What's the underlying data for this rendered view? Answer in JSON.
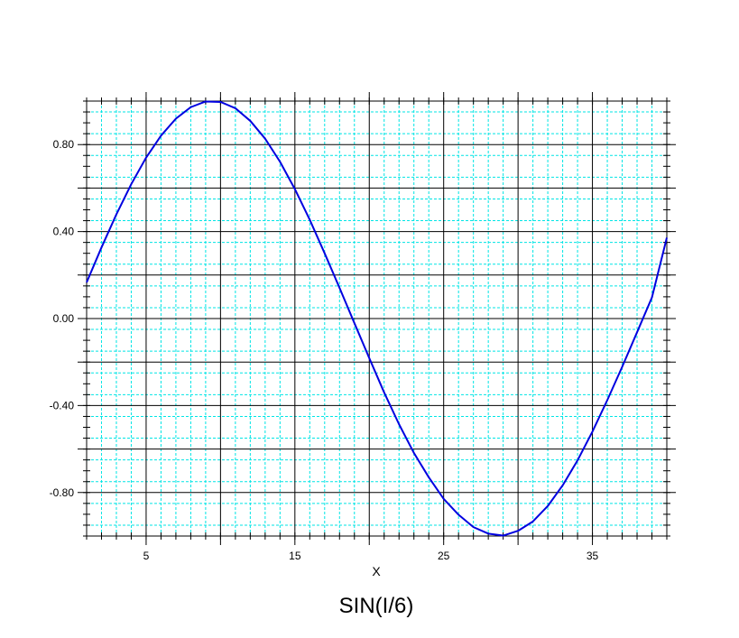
{
  "chart_data": {
    "type": "line",
    "title": "SIN(I/6)",
    "xlabel": "X",
    "ylabel": "",
    "xlim": [
      1,
      40
    ],
    "ylim": [
      -1,
      1
    ],
    "x_major_ticks": [
      5,
      15,
      25,
      35
    ],
    "x_major_tick_labels": [
      "5",
      "15",
      "25",
      "35"
    ],
    "y_major_ticks": [
      0.8,
      0.4,
      0.0,
      -0.4,
      -0.8
    ],
    "y_major_tick_labels": [
      "0.80",
      "0.40",
      "0.00",
      "-0.40",
      "-0.80"
    ],
    "grid": true,
    "series": [
      {
        "x": [
          1,
          2,
          3,
          4,
          5,
          6,
          7,
          8,
          9,
          10,
          11,
          12,
          13,
          14,
          15,
          16,
          17,
          18,
          19,
          20,
          21,
          22,
          23,
          24,
          25,
          26,
          27,
          28,
          29,
          30,
          31,
          32,
          33,
          34,
          35,
          36,
          37,
          38,
          39,
          40
        ],
        "y": [
          0.166,
          0.327,
          0.479,
          0.618,
          0.74,
          0.841,
          0.919,
          0.972,
          0.998,
          0.996,
          0.967,
          0.909,
          0.827,
          0.721,
          0.595,
          0.454,
          0.3,
          0.141,
          -0.021,
          -0.182,
          -0.34,
          -0.486,
          -0.618,
          -0.73,
          -0.829,
          -0.902,
          -0.959,
          -0.989,
          -0.998,
          -0.976,
          -0.933,
          -0.862,
          -0.767,
          -0.652,
          -0.52,
          -0.375,
          -0.222,
          -0.063,
          0.097,
          0.372
        ]
      }
    ],
    "colors": {
      "line": "#0000e0",
      "major_grid": "#000000",
      "minor_grid": "#00e5e5",
      "frame": "#000000"
    }
  }
}
